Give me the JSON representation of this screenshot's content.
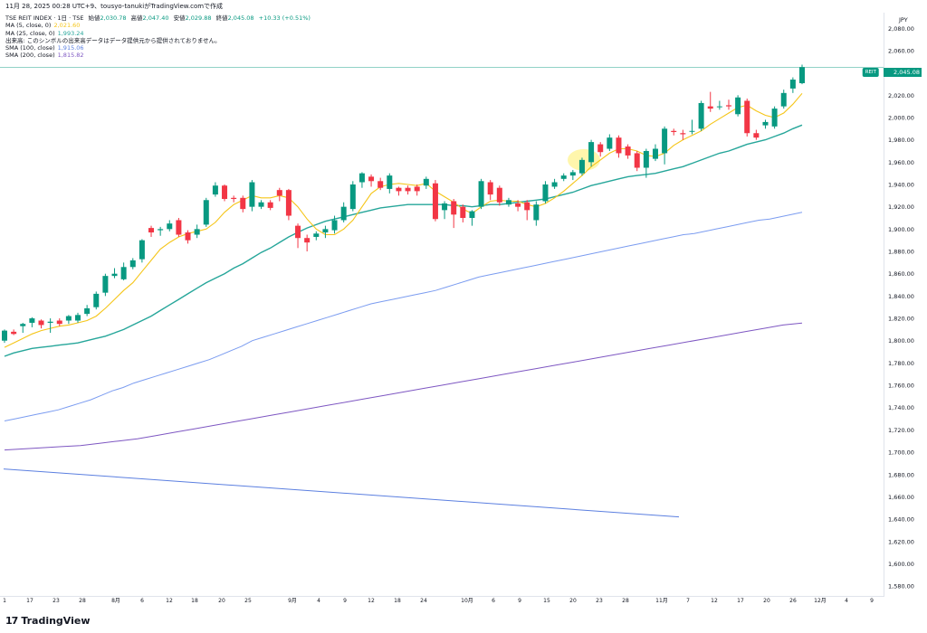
{
  "header": {
    "title_line": "11月 28, 2025 00:28 UTC+9、tousyo-tanukiがTradingView.comで作成"
  },
  "legend": {
    "symbol_line": "TSE REIT INDEX · 1日 · TSE",
    "open_label": "始値",
    "open": "2,030.78",
    "high_label": "高値",
    "high": "2,047.40",
    "low_label": "安値",
    "low": "2,029.88",
    "close_label": "終値",
    "close": "2,045.08",
    "change": "+10.33 (+0.51%)",
    "ma5_label": "MA (5, close, 0)",
    "ma5_value": "2,021.60",
    "ma25_label": "MA (25, close, 0)",
    "ma25_value": "1,993.24",
    "volume_note": "出来高: このシンボルの出来高データはデータ提供元から提供されておりません。",
    "sma100_label": "SMA (100, close)",
    "sma100_value": "1,915.06",
    "sma200_label": "SMA (200, close)",
    "sma200_value": "1,815.82"
  },
  "price_axis": {
    "currency": "JPY",
    "ticks": [
      "2,080.00",
      "2,060.00",
      "2,040.00",
      "2,020.00",
      "2,000.00",
      "1,980.00",
      "1,960.00",
      "1,940.00",
      "1,920.00",
      "1,900.00",
      "1,880.00",
      "1,860.00",
      "1,840.00",
      "1,820.00",
      "1,800.00",
      "1,780.00",
      "1,760.00",
      "1,740.00",
      "1,720.00",
      "1,700.00",
      "1,680.00",
      "1,660.00",
      "1,640.00",
      "1,620.00",
      "1,600.00",
      "1,580.00"
    ],
    "last_price_tag": "2,045.08",
    "symbol_tag": "REIT"
  },
  "time_axis": {
    "labels": [
      "1",
      "17",
      "23",
      "28",
      "8月",
      "6",
      "12",
      "18",
      "20",
      "25",
      "9月",
      "4",
      "9",
      "12",
      "18",
      "24",
      "10月",
      "6",
      "9",
      "15",
      "20",
      "23",
      "28",
      "11月",
      "7",
      "12",
      "17",
      "20",
      "26",
      "12月",
      "4",
      "9"
    ]
  },
  "colors": {
    "up": "#089981",
    "down": "#f23645",
    "ma5": "#f5c518",
    "ma25": "#26a69a",
    "sma100": "#7b9cf0",
    "sma200": "#7e57c2",
    "line_extra": "#5b7fe0",
    "highlight": "#fff59d"
  },
  "branding": {
    "logo_text": "TradingView",
    "logo_mark": "17"
  },
  "chart_data": {
    "type": "candlestick",
    "y_range": [
      1572,
      2094
    ],
    "candles": [
      {
        "o": 1800,
        "c": 1809,
        "h": 1810,
        "l": 1798
      },
      {
        "o": 1808,
        "c": 1806,
        "h": 1810,
        "l": 1805
      },
      {
        "o": 1813,
        "c": 1815,
        "h": 1816,
        "l": 1807
      },
      {
        "o": 1816,
        "c": 1820,
        "h": 1821,
        "l": 1812
      },
      {
        "o": 1818,
        "c": 1814,
        "h": 1819,
        "l": 1811
      },
      {
        "o": 1816,
        "c": 1817,
        "h": 1820,
        "l": 1807
      },
      {
        "o": 1818,
        "c": 1815,
        "h": 1820,
        "l": 1813
      },
      {
        "o": 1818,
        "c": 1822,
        "h": 1823,
        "l": 1815
      },
      {
        "o": 1818,
        "c": 1823,
        "h": 1825,
        "l": 1816
      },
      {
        "o": 1824,
        "c": 1829,
        "h": 1832,
        "l": 1822
      },
      {
        "o": 1830,
        "c": 1842,
        "h": 1844,
        "l": 1828
      },
      {
        "o": 1843,
        "c": 1858,
        "h": 1860,
        "l": 1840
      },
      {
        "o": 1858,
        "c": 1860,
        "h": 1865,
        "l": 1856
      },
      {
        "o": 1855,
        "c": 1866,
        "h": 1870,
        "l": 1854
      },
      {
        "o": 1866,
        "c": 1872,
        "h": 1874,
        "l": 1864
      },
      {
        "o": 1873,
        "c": 1890,
        "h": 1891,
        "l": 1870
      },
      {
        "o": 1901,
        "c": 1897,
        "h": 1903,
        "l": 1893
      },
      {
        "o": 1899,
        "c": 1900,
        "h": 1902,
        "l": 1894
      },
      {
        "o": 1900,
        "c": 1905,
        "h": 1908,
        "l": 1898
      },
      {
        "o": 1908,
        "c": 1895,
        "h": 1910,
        "l": 1893
      },
      {
        "o": 1897,
        "c": 1890,
        "h": 1899,
        "l": 1887
      },
      {
        "o": 1895,
        "c": 1900,
        "h": 1904,
        "l": 1892
      },
      {
        "o": 1904,
        "c": 1926,
        "h": 1928,
        "l": 1902
      },
      {
        "o": 1931,
        "c": 1939,
        "h": 1942,
        "l": 1929
      },
      {
        "o": 1939,
        "c": 1927,
        "h": 1940,
        "l": 1925
      },
      {
        "o": 1928,
        "c": 1927,
        "h": 1930,
        "l": 1924
      },
      {
        "o": 1928,
        "c": 1918,
        "h": 1930,
        "l": 1915
      },
      {
        "o": 1920,
        "c": 1942,
        "h": 1944,
        "l": 1916
      },
      {
        "o": 1920,
        "c": 1924,
        "h": 1926,
        "l": 1918
      },
      {
        "o": 1924,
        "c": 1919,
        "h": 1926,
        "l": 1917
      },
      {
        "o": 1935,
        "c": 1930,
        "h": 1937,
        "l": 1925
      },
      {
        "o": 1935,
        "c": 1912,
        "h": 1936,
        "l": 1908
      },
      {
        "o": 1903,
        "c": 1892,
        "h": 1905,
        "l": 1883
      },
      {
        "o": 1892,
        "c": 1888,
        "h": 1895,
        "l": 1880
      },
      {
        "o": 1893,
        "c": 1896,
        "h": 1898,
        "l": 1890
      },
      {
        "o": 1897,
        "c": 1900,
        "h": 1903,
        "l": 1892
      },
      {
        "o": 1899,
        "c": 1908,
        "h": 1912,
        "l": 1896
      },
      {
        "o": 1908,
        "c": 1920,
        "h": 1924,
        "l": 1906
      },
      {
        "o": 1918,
        "c": 1940,
        "h": 1943,
        "l": 1916
      },
      {
        "o": 1942,
        "c": 1950,
        "h": 1951,
        "l": 1937
      },
      {
        "o": 1947,
        "c": 1943,
        "h": 1949,
        "l": 1938
      },
      {
        "o": 1943,
        "c": 1937,
        "h": 1946,
        "l": 1935
      },
      {
        "o": 1936,
        "c": 1948,
        "h": 1950,
        "l": 1932
      },
      {
        "o": 1937,
        "c": 1934,
        "h": 1938,
        "l": 1930
      },
      {
        "o": 1937,
        "c": 1934,
        "h": 1939,
        "l": 1931
      },
      {
        "o": 1938,
        "c": 1934,
        "h": 1940,
        "l": 1930
      },
      {
        "o": 1939,
        "c": 1945,
        "h": 1947,
        "l": 1936
      },
      {
        "o": 1941,
        "c": 1909,
        "h": 1944,
        "l": 1907
      },
      {
        "o": 1917,
        "c": 1923,
        "h": 1925,
        "l": 1909
      },
      {
        "o": 1925,
        "c": 1913,
        "h": 1927,
        "l": 1901
      },
      {
        "o": 1920,
        "c": 1910,
        "h": 1922,
        "l": 1906
      },
      {
        "o": 1910,
        "c": 1916,
        "h": 1917,
        "l": 1903
      },
      {
        "o": 1920,
        "c": 1943,
        "h": 1945,
        "l": 1918
      },
      {
        "o": 1942,
        "c": 1931,
        "h": 1944,
        "l": 1926
      },
      {
        "o": 1937,
        "c": 1924,
        "h": 1939,
        "l": 1921
      },
      {
        "o": 1922,
        "c": 1926,
        "h": 1928,
        "l": 1920
      },
      {
        "o": 1923,
        "c": 1920,
        "h": 1926,
        "l": 1916
      },
      {
        "o": 1924,
        "c": 1917,
        "h": 1926,
        "l": 1908
      },
      {
        "o": 1908,
        "c": 1922,
        "h": 1925,
        "l": 1903
      },
      {
        "o": 1925,
        "c": 1940,
        "h": 1943,
        "l": 1923
      },
      {
        "o": 1938,
        "c": 1942,
        "h": 1945,
        "l": 1936
      },
      {
        "o": 1945,
        "c": 1948,
        "h": 1950,
        "l": 1943
      },
      {
        "o": 1948,
        "c": 1951,
        "h": 1953,
        "l": 1944
      },
      {
        "o": 1950,
        "c": 1962,
        "h": 1964,
        "l": 1948
      },
      {
        "o": 1960,
        "c": 1978,
        "h": 1980,
        "l": 1956
      },
      {
        "o": 1976,
        "c": 1969,
        "h": 1978,
        "l": 1965
      },
      {
        "o": 1972,
        "c": 1982,
        "h": 1985,
        "l": 1970
      },
      {
        "o": 1982,
        "c": 1968,
        "h": 1984,
        "l": 1964
      },
      {
        "o": 1974,
        "c": 1966,
        "h": 1976,
        "l": 1963
      },
      {
        "o": 1968,
        "c": 1955,
        "h": 1970,
        "l": 1952
      },
      {
        "o": 1955,
        "c": 1970,
        "h": 1972,
        "l": 1946
      },
      {
        "o": 1963,
        "c": 1972,
        "h": 1976,
        "l": 1961
      },
      {
        "o": 1968,
        "c": 1990,
        "h": 1992,
        "l": 1958
      },
      {
        "o": 1988,
        "c": 1987,
        "h": 1990,
        "l": 1984
      },
      {
        "o": 1986,
        "c": 1985,
        "h": 1989,
        "l": 1980
      },
      {
        "o": 1988,
        "c": 1988,
        "h": 1998,
        "l": 1985
      },
      {
        "o": 1990,
        "c": 2013,
        "h": 2015,
        "l": 1988
      },
      {
        "o": 2010,
        "c": 2008,
        "h": 2023,
        "l": 2005
      },
      {
        "o": 2010,
        "c": 2010,
        "h": 2015,
        "l": 2007
      },
      {
        "o": 2011,
        "c": 2010,
        "h": 2016,
        "l": 2007
      },
      {
        "o": 2003,
        "c": 2018,
        "h": 2020,
        "l": 2001
      },
      {
        "o": 2015,
        "c": 1986,
        "h": 2017,
        "l": 1983
      },
      {
        "o": 1986,
        "c": 1982,
        "h": 1989,
        "l": 1980
      },
      {
        "o": 1993,
        "c": 1996,
        "h": 1998,
        "l": 1990
      },
      {
        "o": 1992,
        "c": 2008,
        "h": 2010,
        "l": 1990
      },
      {
        "o": 2010,
        "c": 2022,
        "h": 2025,
        "l": 2008
      },
      {
        "o": 2026,
        "c": 2034,
        "h": 2036,
        "l": 2022
      },
      {
        "o": 2030.78,
        "c": 2045.08,
        "h": 2047.4,
        "l": 2029.88
      }
    ],
    "ma5": [
      1794,
      1798,
      1802,
      1806,
      1809,
      1811,
      1813,
      1814,
      1816,
      1818,
      1822,
      1829,
      1837,
      1845,
      1852,
      1862,
      1872,
      1882,
      1888,
      1893,
      1896,
      1898,
      1900,
      1906,
      1915,
      1922,
      1926,
      1930,
      1928,
      1928,
      1930,
      1928,
      1920,
      1909,
      1900,
      1895,
      1895,
      1900,
      1908,
      1920,
      1932,
      1938,
      1940,
      1941,
      1940,
      1939,
      1941,
      1934,
      1929,
      1924,
      1918,
      1914,
      1920,
      1925,
      1926,
      1925,
      1925,
      1922,
      1920,
      1923,
      1928,
      1934,
      1941,
      1948,
      1956,
      1962,
      1968,
      1972,
      1972,
      1970,
      1966,
      1965,
      1968,
      1975,
      1980,
      1984,
      1988,
      1994,
      1999,
      2004,
      2009,
      2011,
      2006,
      2002,
      2000,
      2004,
      2012,
      2021.6
    ],
    "ma25": [
      1786,
      1789,
      1791,
      1793,
      1794,
      1795,
      1796,
      1797,
      1798,
      1800,
      1802,
      1804,
      1807,
      1810,
      1814,
      1818,
      1822,
      1827,
      1832,
      1837,
      1842,
      1847,
      1852,
      1856,
      1860,
      1865,
      1869,
      1874,
      1879,
      1883,
      1888,
      1893,
      1897,
      1901,
      1904,
      1907,
      1909,
      1911,
      1913,
      1915,
      1917,
      1919,
      1920,
      1921,
      1922,
      1922,
      1922,
      1922,
      1922,
      1921,
      1921,
      1920,
      1921,
      1922,
      1922,
      1923,
      1924,
      1925,
      1926,
      1927,
      1929,
      1931,
      1933,
      1936,
      1939,
      1941,
      1943,
      1945,
      1947,
      1948,
      1949,
      1950,
      1952,
      1954,
      1956,
      1959,
      1962,
      1965,
      1968,
      1970,
      1973,
      1976,
      1978,
      1980,
      1983,
      1986,
      1990,
      1993.24
    ],
    "sma100": [
      1728,
      1730,
      1732,
      1734,
      1736,
      1738,
      1741,
      1744,
      1747,
      1751,
      1755,
      1758,
      1762,
      1765,
      1768,
      1771,
      1774,
      1777,
      1780,
      1783,
      1787,
      1791,
      1795,
      1800,
      1803,
      1806,
      1809,
      1812,
      1815,
      1818,
      1821,
      1824,
      1827,
      1830,
      1833,
      1835,
      1837,
      1839,
      1841,
      1843,
      1845,
      1848,
      1851,
      1854,
      1857,
      1859,
      1861,
      1863,
      1865,
      1867,
      1869,
      1871,
      1873,
      1875,
      1877,
      1879,
      1881,
      1883,
      1885,
      1887,
      1889,
      1891,
      1893,
      1895,
      1896,
      1898,
      1900,
      1902,
      1904,
      1906,
      1908,
      1909,
      1911,
      1913,
      1915.06
    ],
    "sma200": [
      1702,
      1703,
      1704,
      1705,
      1706,
      1708,
      1710,
      1712,
      1715,
      1718,
      1721,
      1724,
      1727,
      1730,
      1733,
      1736,
      1739,
      1742,
      1745,
      1748,
      1751,
      1754,
      1757,
      1760,
      1763,
      1766,
      1769,
      1772,
      1775,
      1778,
      1781,
      1784,
      1787,
      1790,
      1793,
      1796,
      1799,
      1802,
      1805,
      1808,
      1811,
      1814,
      1815.82
    ],
    "extra_line": [
      1685,
      1642
    ]
  }
}
